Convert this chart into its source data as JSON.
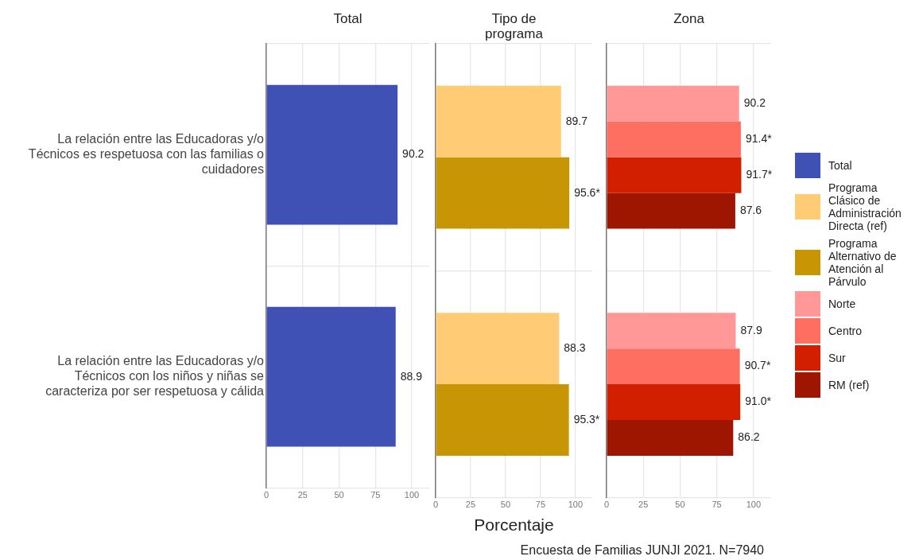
{
  "chart_data": [
    {
      "type": "bar",
      "orientation": "horizontal",
      "title": "Total",
      "categories": [
        "La relación entre las Educadoras y/o Técnicos es respetuosa con las familias o cuidadores",
        "La relación entre las Educadoras y/o Técnicos con los niños y niñas se caracteriza por ser respetuosa y cálida"
      ],
      "series": [
        {
          "name": "Total",
          "color": "#3f51b5",
          "values": [
            90.2,
            88.9
          ],
          "value_labels": [
            "90.2",
            "88.9"
          ]
        }
      ],
      "xlim": [
        0,
        112
      ],
      "xticks": [
        0,
        25,
        50,
        75,
        100
      ],
      "grid": true,
      "legend": "right"
    },
    {
      "type": "bar",
      "orientation": "horizontal",
      "title": "Tipo de programa",
      "xlabel": "Porcentaje",
      "categories": [
        null,
        null
      ],
      "series": [
        {
          "name": "Programa Clásico de Administración Directa (ref)",
          "color": "#ffcc75",
          "values": [
            89.7,
            88.3
          ],
          "value_labels": [
            "89.7",
            "88.3"
          ]
        },
        {
          "name": "Programa Alternativo de Atención al Párvulo",
          "color": "#c89504",
          "values": [
            95.6,
            95.3
          ],
          "value_labels": [
            "95.6*",
            "95.3*"
          ]
        }
      ],
      "xlim": [
        0,
        112
      ],
      "xticks": [
        0,
        25,
        50,
        75,
        100
      ],
      "grid": true,
      "legend": "right",
      "tick_labels": "x"
    },
    {
      "type": "bar",
      "orientation": "horizontal",
      "title": "Zona",
      "annotations": [
        "Encuesta de Familias JUNJI 2021. N=7940"
      ],
      "categories": [
        null,
        null
      ],
      "series": [
        {
          "name": "Norte",
          "color": "#ff9896",
          "values": [
            90.2,
            87.9
          ],
          "value_labels": [
            "90.2",
            "87.9"
          ]
        },
        {
          "name": "Centro",
          "color": "#ff6f61",
          "values": [
            91.4,
            90.7
          ],
          "value_labels": [
            "91.4*",
            "90.7*"
          ]
        },
        {
          "name": "Sur",
          "color": "#d21f00",
          "values": [
            91.7,
            91.0
          ],
          "value_labels": [
            "91.7*",
            "91.0*"
          ]
        },
        {
          "name": "RM (ref)",
          "color": "#9e1500",
          "values": [
            87.6,
            86.2
          ],
          "value_labels": [
            "87.6",
            "86.2"
          ]
        }
      ],
      "xlim": [
        0,
        112
      ],
      "xticks": [
        0,
        25,
        50,
        75,
        100
      ],
      "grid": true,
      "legend": "right",
      "tick_labels": "x"
    }
  ]
}
